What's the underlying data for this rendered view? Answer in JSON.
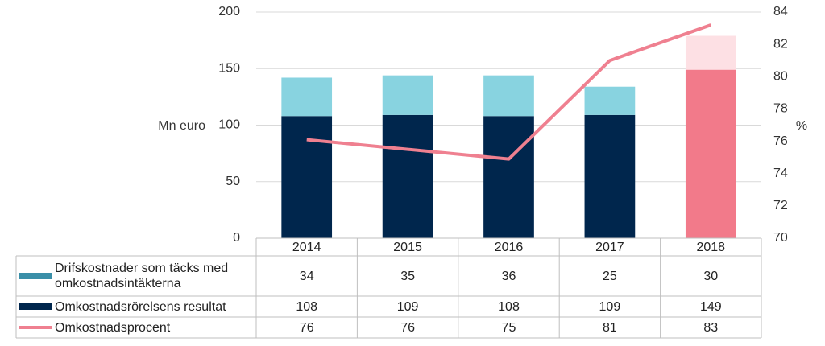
{
  "chart_data": {
    "type": "bar",
    "y_label": "Mn euro",
    "y2_label": "%",
    "categories": [
      "2014",
      "2015",
      "2016",
      "2017",
      "2018"
    ],
    "ylim": [
      0,
      200
    ],
    "yticks": [
      0,
      50,
      100,
      150,
      200
    ],
    "y2lim": [
      70,
      84
    ],
    "y2ticks": [
      70,
      72,
      74,
      76,
      78,
      80,
      82,
      84
    ],
    "grid": true,
    "series": [
      {
        "name": "Drifskostnader som täcks med omkostnadsintäkterna",
        "type": "bar",
        "color": "#3a8fa8",
        "colors": [
          "#88d3e0",
          "#88d3e0",
          "#88d3e0",
          "#88d3e0",
          "#fde0e4"
        ],
        "values": [
          34,
          35,
          36,
          25,
          30
        ]
      },
      {
        "name": "Omkostnadsrörelsens resultat",
        "type": "bar",
        "color": "#00264d",
        "colors": [
          "#00264d",
          "#00264d",
          "#00264d",
          "#00264d",
          "#f27a8a"
        ],
        "values": [
          108,
          109,
          108,
          109,
          149
        ]
      },
      {
        "name": "Omkostnadsprocent",
        "type": "line",
        "axis": "y2",
        "color": "#ef8090",
        "values": [
          76.1,
          75.5,
          74.9,
          81,
          83.2
        ],
        "value_labels": [
          "76",
          "76",
          "75",
          "81",
          "83"
        ]
      }
    ]
  }
}
